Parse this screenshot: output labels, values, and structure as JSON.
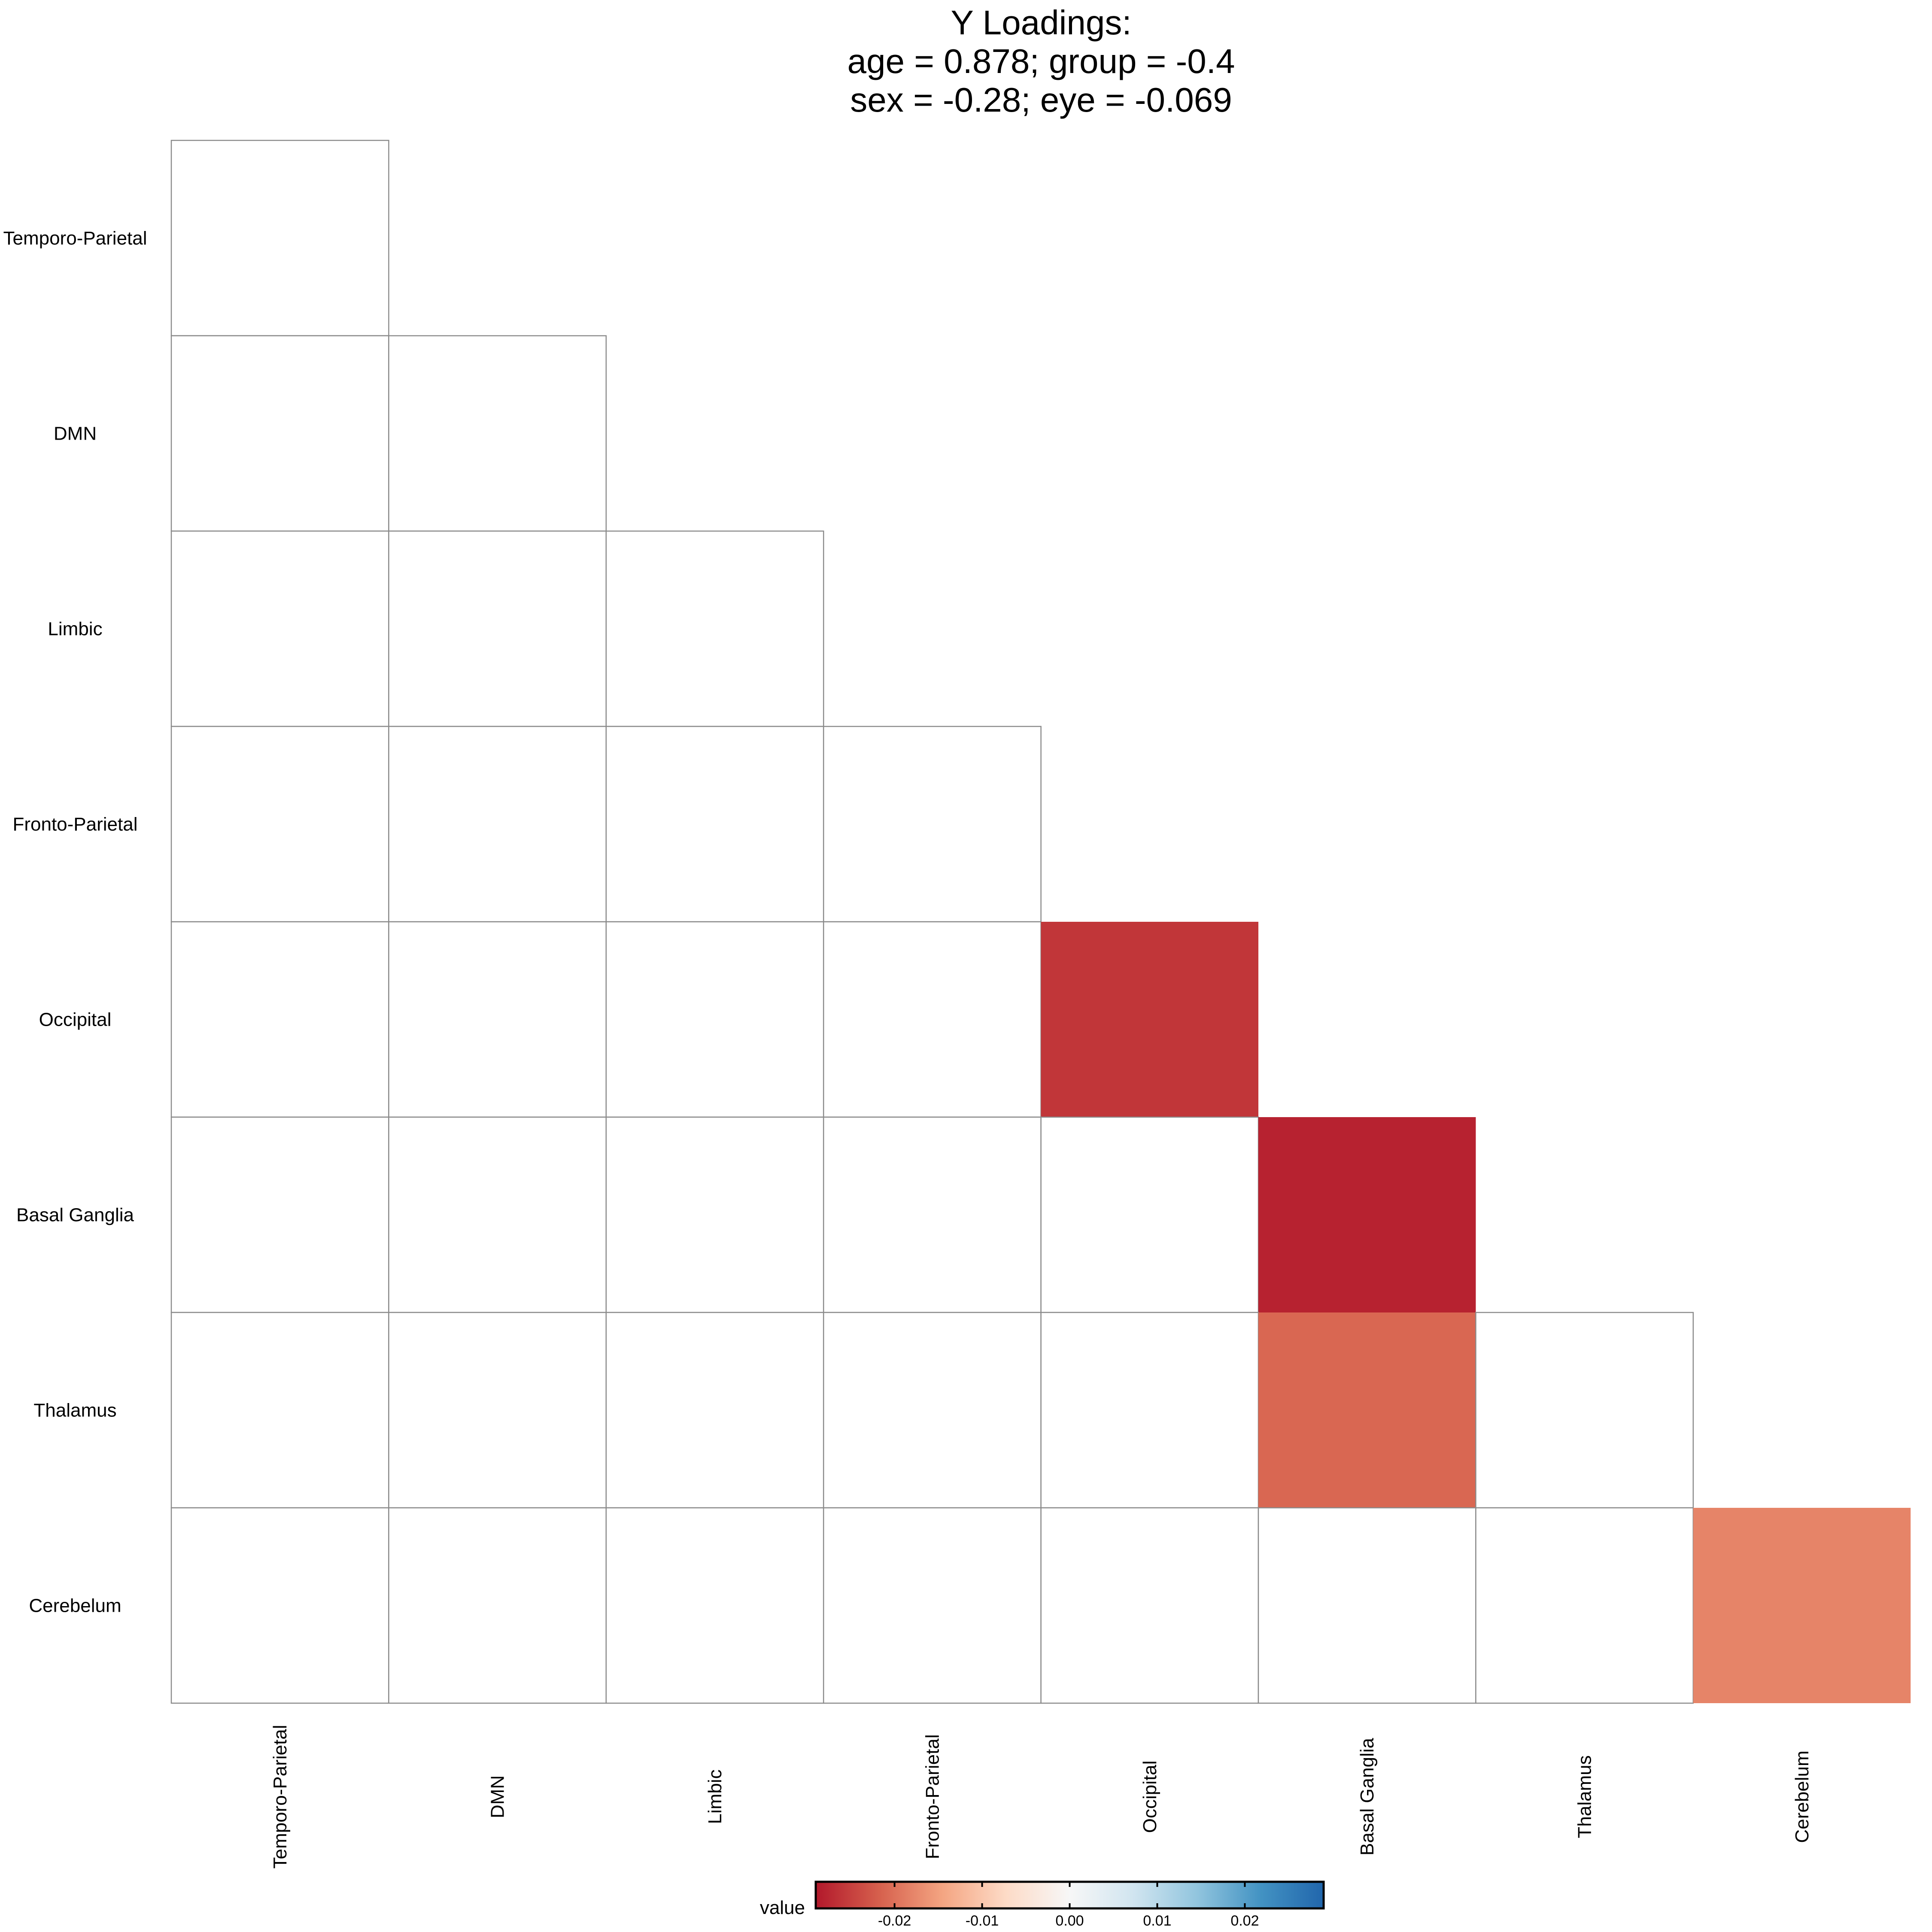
{
  "chart_data": {
    "type": "heatmap",
    "title": [
      "Y Loadings:",
      "age = 0.878; group = -0.4",
      "sex = -0.28; eye = -0.069"
    ],
    "labels": [
      "Temporo-Parietal",
      "DMN",
      "Limbic",
      "Fronto-Parietal",
      "Occipital",
      "Basal Ganglia",
      "Thalamus",
      "Cerebelum"
    ],
    "lower_triangle_only": true,
    "values": [
      [
        0
      ],
      [
        0,
        0
      ],
      [
        0,
        0,
        0
      ],
      [
        0,
        0,
        0,
        0
      ],
      [
        0,
        0,
        0,
        0,
        -0.026
      ],
      [
        0,
        0,
        0,
        0,
        0,
        -0.028
      ],
      [
        0,
        0,
        0,
        0,
        0,
        -0.021,
        0
      ],
      [
        0,
        0,
        0,
        0,
        0,
        0,
        0,
        -0.018
      ]
    ],
    "colorbar": {
      "title": "value",
      "range": [
        -0.029,
        0.029
      ],
      "ticks": [
        -0.02,
        -0.01,
        0.0,
        0.01,
        0.02
      ],
      "tick_labels": [
        "-0.02",
        "-0.01",
        "0.00",
        "0.01",
        "0.02"
      ],
      "colors": [
        "#b2182b",
        "#d6604d",
        "#f4a582",
        "#fddbc7",
        "#f7f7f7",
        "#d1e5f0",
        "#92c5de",
        "#4393c3",
        "#2166ac"
      ]
    },
    "grid": true,
    "legend_position": "bottom"
  }
}
